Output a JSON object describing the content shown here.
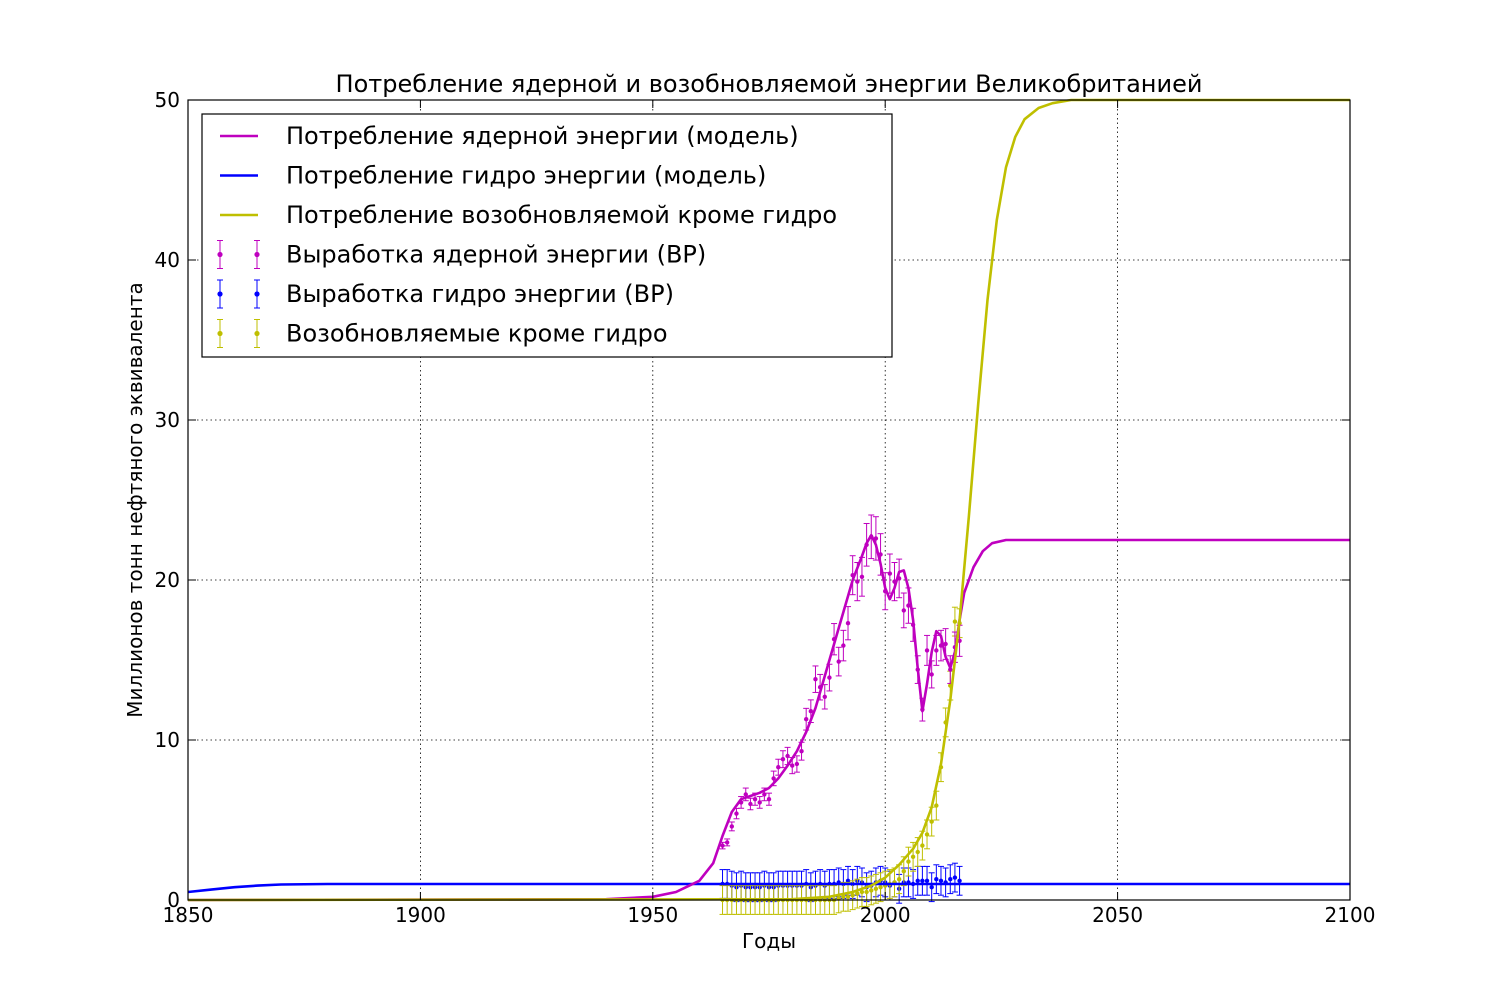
{
  "chart_data": {
    "type": "line",
    "title": "Потребление ядерной и возобновляемой энергии Великобританией",
    "xlabel": "Годы",
    "ylabel": "Миллионов тонн нефтяного эквивалента",
    "xlim": [
      1850,
      2100
    ],
    "ylim": [
      0,
      50
    ],
    "xticks": [
      1850,
      1900,
      1950,
      2000,
      2050,
      2100
    ],
    "yticks": [
      0,
      10,
      20,
      30,
      40,
      50
    ],
    "grid": true,
    "legend_position": "top-left",
    "series": [
      {
        "name": "Потребление ядерной энергии (модель)",
        "kind": "line",
        "color": "#bf00bf",
        "points": [
          [
            1850,
            0
          ],
          [
            1940,
            0.05
          ],
          [
            1950,
            0.2
          ],
          [
            1955,
            0.5
          ],
          [
            1960,
            1.2
          ],
          [
            1963,
            2.3
          ],
          [
            1965,
            4.0
          ],
          [
            1967,
            5.5
          ],
          [
            1969,
            6.3
          ],
          [
            1971,
            6.5
          ],
          [
            1973,
            6.7
          ],
          [
            1975,
            7.0
          ],
          [
            1977,
            7.6
          ],
          [
            1979,
            8.4
          ],
          [
            1981,
            9.3
          ],
          [
            1983,
            10.5
          ],
          [
            1985,
            12.0
          ],
          [
            1987,
            14.0
          ],
          [
            1989,
            16.0
          ],
          [
            1991,
            18.0
          ],
          [
            1993,
            20.0
          ],
          [
            1995,
            21.5
          ],
          [
            1996,
            22.3
          ],
          [
            1997,
            22.8
          ],
          [
            1998,
            22.2
          ],
          [
            1999,
            21.0
          ],
          [
            2000,
            19.5
          ],
          [
            2001,
            18.8
          ],
          [
            2002,
            19.5
          ],
          [
            2003,
            20.5
          ],
          [
            2004,
            20.6
          ],
          [
            2005,
            19.5
          ],
          [
            2006,
            17.5
          ],
          [
            2007,
            14.5
          ],
          [
            2008,
            11.8
          ],
          [
            2009,
            13.5
          ],
          [
            2010,
            15.5
          ],
          [
            2011,
            16.8
          ],
          [
            2012,
            16.5
          ],
          [
            2013,
            15.2
          ],
          [
            2014,
            14.5
          ],
          [
            2015,
            15.5
          ],
          [
            2016,
            17.5
          ],
          [
            2017,
            19.2
          ],
          [
            2019,
            20.8
          ],
          [
            2021,
            21.8
          ],
          [
            2023,
            22.3
          ],
          [
            2026,
            22.5
          ],
          [
            2035,
            22.5
          ],
          [
            2100,
            22.5
          ]
        ]
      },
      {
        "name": "Потребление гидро энергии (модель)",
        "kind": "line",
        "color": "#0000ff",
        "points": [
          [
            1850,
            0.5
          ],
          [
            1855,
            0.65
          ],
          [
            1860,
            0.8
          ],
          [
            1865,
            0.9
          ],
          [
            1870,
            0.97
          ],
          [
            1880,
            1.0
          ],
          [
            1900,
            1.0
          ],
          [
            2100,
            1.0
          ]
        ]
      },
      {
        "name": "Потребление возобновляемой кроме гидро",
        "kind": "line",
        "color": "#bfbf00",
        "points": [
          [
            1850,
            0
          ],
          [
            1980,
            0.05
          ],
          [
            1988,
            0.2
          ],
          [
            1993,
            0.5
          ],
          [
            1997,
            0.9
          ],
          [
            2000,
            1.4
          ],
          [
            2003,
            2.2
          ],
          [
            2006,
            3.2
          ],
          [
            2008,
            4.2
          ],
          [
            2010,
            5.8
          ],
          [
            2012,
            8.5
          ],
          [
            2014,
            12.5
          ],
          [
            2016,
            17.5
          ],
          [
            2018,
            24.0
          ],
          [
            2020,
            31.0
          ],
          [
            2022,
            37.5
          ],
          [
            2024,
            42.5
          ],
          [
            2026,
            45.8
          ],
          [
            2028,
            47.7
          ],
          [
            2030,
            48.8
          ],
          [
            2033,
            49.5
          ],
          [
            2036,
            49.8
          ],
          [
            2040,
            50.0
          ],
          [
            2100,
            50.0
          ]
        ]
      },
      {
        "name": "Выработка ядерной энергии (BP)",
        "kind": "errorbar",
        "color": "#bf00bf",
        "yerr_fraction": 0.06,
        "points": [
          [
            1965,
            3.4
          ],
          [
            1966,
            3.6
          ],
          [
            1967,
            4.6
          ],
          [
            1968,
            5.4
          ],
          [
            1969,
            6.1
          ],
          [
            1970,
            6.6
          ],
          [
            1971,
            6.0
          ],
          [
            1972,
            6.3
          ],
          [
            1973,
            6.1
          ],
          [
            1974,
            6.6
          ],
          [
            1975,
            6.3
          ],
          [
            1976,
            7.6
          ],
          [
            1977,
            8.3
          ],
          [
            1978,
            8.8
          ],
          [
            1979,
            9.0
          ],
          [
            1980,
            8.4
          ],
          [
            1981,
            8.5
          ],
          [
            1982,
            9.3
          ],
          [
            1983,
            11.3
          ],
          [
            1984,
            11.8
          ],
          [
            1985,
            13.8
          ],
          [
            1986,
            13.3
          ],
          [
            1987,
            12.7
          ],
          [
            1988,
            13.9
          ],
          [
            1989,
            16.3
          ],
          [
            1990,
            14.9
          ],
          [
            1991,
            15.9
          ],
          [
            1992,
            17.3
          ],
          [
            1993,
            20.3
          ],
          [
            1994,
            19.9
          ],
          [
            1995,
            20.2
          ],
          [
            1996,
            22.2
          ],
          [
            1997,
            22.7
          ],
          [
            1998,
            22.6
          ],
          [
            1999,
            21.6
          ],
          [
            2000,
            19.3
          ],
          [
            2001,
            20.4
          ],
          [
            2002,
            19.9
          ],
          [
            2003,
            20.1
          ],
          [
            2004,
            18.1
          ],
          [
            2005,
            18.4
          ],
          [
            2006,
            17.2
          ],
          [
            2007,
            14.4
          ],
          [
            2008,
            11.9
          ],
          [
            2009,
            15.6
          ],
          [
            2010,
            14.1
          ],
          [
            2011,
            15.6
          ],
          [
            2012,
            15.9
          ],
          [
            2013,
            16.0
          ],
          [
            2014,
            14.4
          ],
          [
            2015,
            15.8
          ],
          [
            2016,
            16.2
          ]
        ]
      },
      {
        "name": "Выработка гидро энергии (BP)",
        "kind": "errorbar",
        "color": "#0000ff",
        "yerr_abs": 0.9,
        "points": [
          [
            1965,
            1.0
          ],
          [
            1966,
            1.0
          ],
          [
            1967,
            0.9
          ],
          [
            1968,
            0.8
          ],
          [
            1969,
            0.9
          ],
          [
            1970,
            0.8
          ],
          [
            1971,
            0.8
          ],
          [
            1972,
            0.8
          ],
          [
            1973,
            0.8
          ],
          [
            1974,
            0.9
          ],
          [
            1975,
            0.8
          ],
          [
            1976,
            0.8
          ],
          [
            1977,
            0.9
          ],
          [
            1978,
            0.9
          ],
          [
            1979,
            0.9
          ],
          [
            1980,
            0.9
          ],
          [
            1981,
            0.9
          ],
          [
            1982,
            0.9
          ],
          [
            1983,
            1.0
          ],
          [
            1984,
            0.8
          ],
          [
            1985,
            0.9
          ],
          [
            1986,
            1.0
          ],
          [
            1987,
            0.9
          ],
          [
            1988,
            1.0
          ],
          [
            1989,
            1.0
          ],
          [
            1990,
            1.1
          ],
          [
            1991,
            1.0
          ],
          [
            1992,
            1.2
          ],
          [
            1993,
            1.0
          ],
          [
            1994,
            1.2
          ],
          [
            1995,
            1.1
          ],
          [
            1996,
            0.8
          ],
          [
            1997,
            0.9
          ],
          [
            1998,
            1.1
          ],
          [
            1999,
            1.2
          ],
          [
            2000,
            1.1
          ],
          [
            2001,
            0.9
          ],
          [
            2002,
            1.1
          ],
          [
            2003,
            0.7
          ],
          [
            2004,
            1.1
          ],
          [
            2005,
            1.1
          ],
          [
            2006,
            1.0
          ],
          [
            2007,
            1.2
          ],
          [
            2008,
            1.2
          ],
          [
            2009,
            1.2
          ],
          [
            2010,
            0.8
          ],
          [
            2011,
            1.3
          ],
          [
            2012,
            1.2
          ],
          [
            2013,
            1.1
          ],
          [
            2014,
            1.3
          ],
          [
            2015,
            1.4
          ],
          [
            2016,
            1.2
          ]
        ]
      },
      {
        "name": "Возобновляемые кроме гидро",
        "kind": "errorbar",
        "color": "#bfbf00",
        "yerr_abs": 0.9,
        "points": [
          [
            1965,
            0.0
          ],
          [
            1966,
            0.0
          ],
          [
            1967,
            0.0
          ],
          [
            1968,
            0.0
          ],
          [
            1969,
            0.0
          ],
          [
            1970,
            0.0
          ],
          [
            1971,
            0.0
          ],
          [
            1972,
            0.0
          ],
          [
            1973,
            0.0
          ],
          [
            1974,
            0.0
          ],
          [
            1975,
            0.0
          ],
          [
            1976,
            0.0
          ],
          [
            1977,
            0.0
          ],
          [
            1978,
            0.0
          ],
          [
            1979,
            0.0
          ],
          [
            1980,
            0.0
          ],
          [
            1981,
            0.0
          ],
          [
            1982,
            0.0
          ],
          [
            1983,
            0.0
          ],
          [
            1984,
            0.0
          ],
          [
            1985,
            0.0
          ],
          [
            1986,
            0.0
          ],
          [
            1987,
            0.0
          ],
          [
            1988,
            0.0
          ],
          [
            1989,
            0.0
          ],
          [
            1990,
            0.1
          ],
          [
            1991,
            0.2
          ],
          [
            1992,
            0.2
          ],
          [
            1993,
            0.3
          ],
          [
            1994,
            0.4
          ],
          [
            1995,
            0.5
          ],
          [
            1996,
            0.5
          ],
          [
            1997,
            0.6
          ],
          [
            1998,
            0.7
          ],
          [
            1999,
            0.8
          ],
          [
            2000,
            0.9
          ],
          [
            2001,
            1.0
          ],
          [
            2002,
            1.1
          ],
          [
            2003,
            1.3
          ],
          [
            2004,
            1.8
          ],
          [
            2005,
            2.4
          ],
          [
            2006,
            2.7
          ],
          [
            2007,
            3.0
          ],
          [
            2008,
            3.4
          ],
          [
            2009,
            4.1
          ],
          [
            2010,
            4.9
          ],
          [
            2011,
            5.9
          ],
          [
            2012,
            8.3
          ],
          [
            2013,
            11.1
          ],
          [
            2014,
            13.4
          ],
          [
            2015,
            17.4
          ],
          [
            2016,
            17.3
          ]
        ]
      }
    ]
  }
}
